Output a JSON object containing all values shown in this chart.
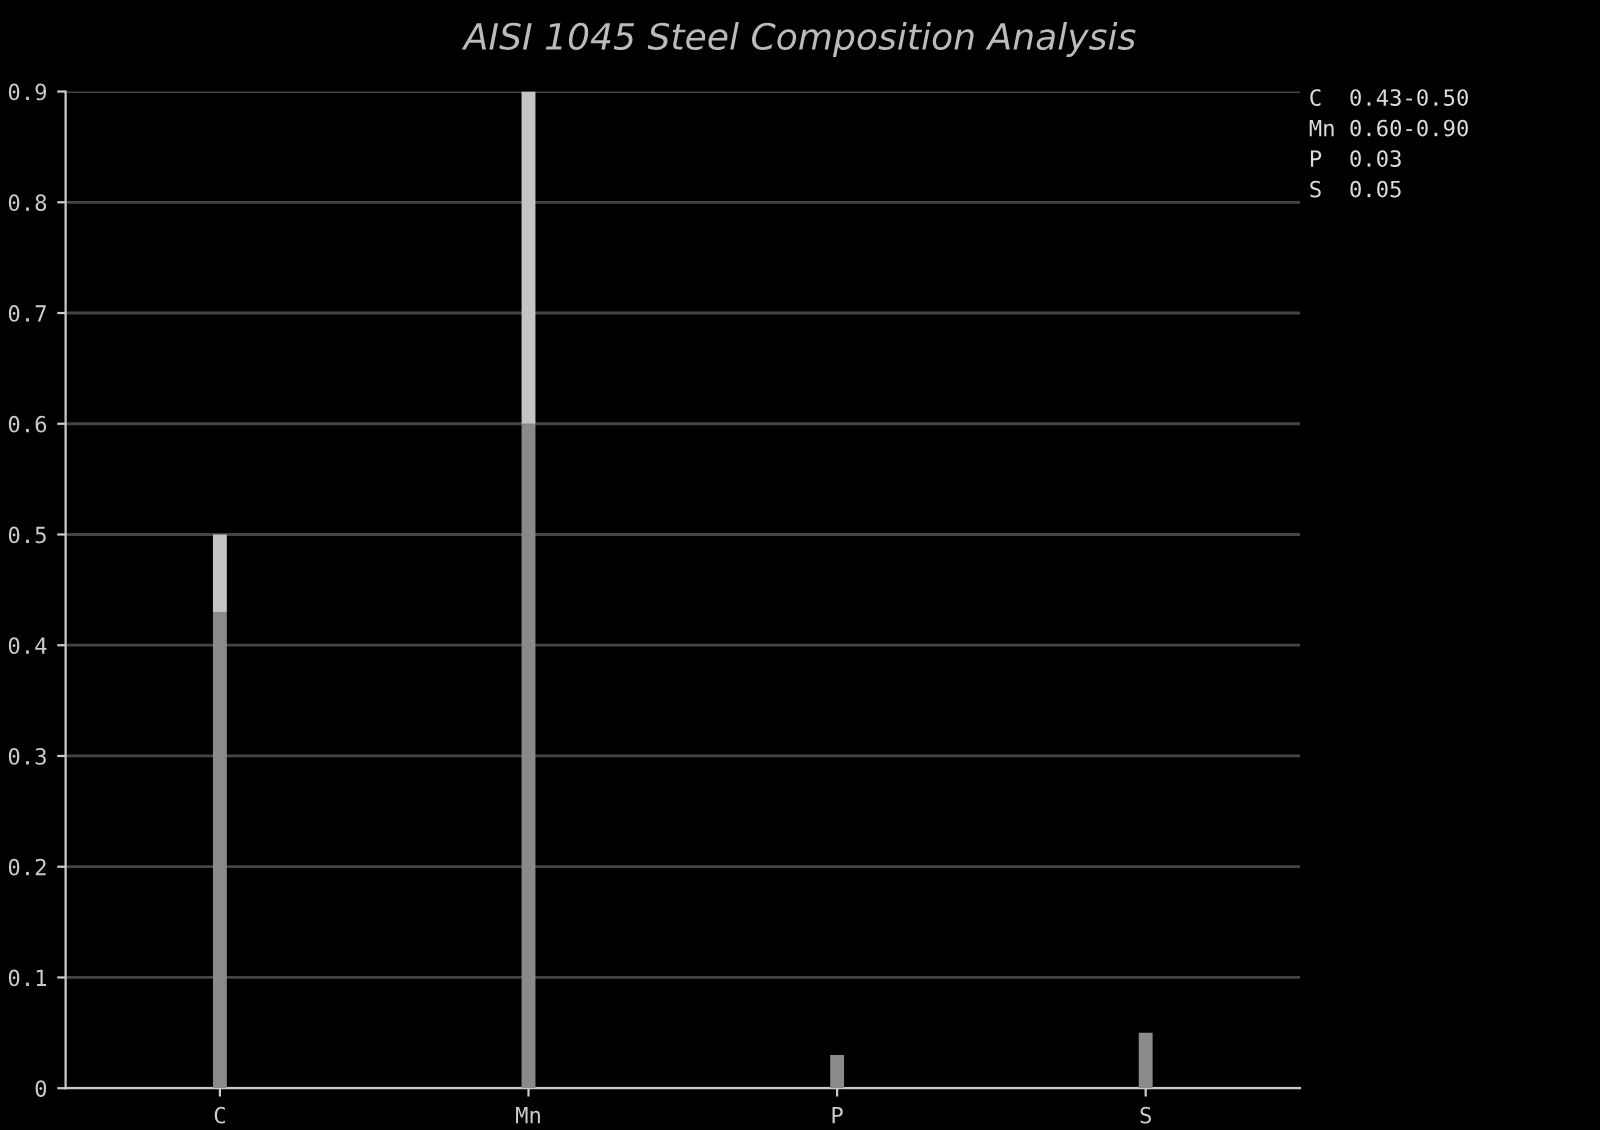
{
  "chart_data": {
    "type": "bar",
    "title": "AISI 1045 Steel Composition Analysis",
    "categories": [
      "C",
      "Mn",
      "P",
      "S"
    ],
    "stacked": true,
    "series": [
      {
        "color": "#8a8a8a",
        "values": [
          0.43,
          0.6,
          0.03,
          0.05
        ]
      },
      {
        "color": "#c4c4c4",
        "values": [
          0.07,
          0.3,
          0,
          0
        ]
      }
    ],
    "ylim": [
      0,
      0.9
    ],
    "yticks": [
      0,
      0.1,
      0.2,
      0.3,
      0.4,
      0.5,
      0.6,
      0.7,
      0.8,
      0.9
    ],
    "grid": "y",
    "annotations": [
      "C  0.43-0.50",
      "Mn 0.60-0.90",
      "P  0.03",
      "S  0.05"
    ]
  }
}
